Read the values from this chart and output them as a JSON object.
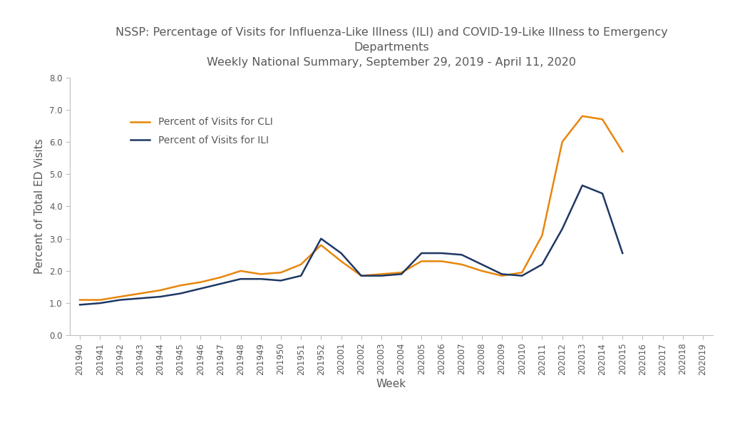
{
  "title_line1": "NSSP: Percentage of Visits for Influenza-Like Illness (ILI) and COVID-19-Like Illness to Emergency",
  "title_line2": "Departments",
  "title_line3": "Weekly National Summary, September 29, 2019 - April 11, 2020",
  "xlabel": "Week",
  "ylabel": "Percent of Total ED Visits",
  "ylim": [
    0.0,
    8.0
  ],
  "yticks": [
    0.0,
    1.0,
    2.0,
    3.0,
    4.0,
    5.0,
    6.0,
    7.0,
    8.0
  ],
  "weeks": [
    "201940",
    "201941",
    "201942",
    "201943",
    "201944",
    "201945",
    "201946",
    "201947",
    "201948",
    "201949",
    "201950",
    "201951",
    "201952",
    "202001",
    "202002",
    "202003",
    "202004",
    "202005",
    "202006",
    "202007",
    "202008",
    "202009",
    "202010",
    "202011",
    "202012",
    "202013",
    "202014",
    "202015",
    "202016",
    "202017",
    "202018",
    "202019"
  ],
  "cli_values": [
    1.1,
    1.1,
    1.2,
    1.3,
    1.4,
    1.55,
    1.65,
    1.8,
    2.0,
    1.9,
    1.95,
    2.2,
    2.8,
    2.3,
    1.85,
    1.9,
    1.95,
    2.3,
    2.3,
    2.2,
    2.0,
    1.85,
    1.95,
    3.1,
    6.0,
    6.8,
    6.7,
    5.7,
    null,
    null,
    null,
    null
  ],
  "ili_values": [
    0.95,
    1.0,
    1.1,
    1.15,
    1.2,
    1.3,
    1.45,
    1.6,
    1.75,
    1.75,
    1.7,
    1.85,
    3.0,
    2.55,
    1.85,
    1.85,
    1.9,
    2.55,
    2.55,
    2.5,
    2.2,
    1.9,
    1.85,
    2.2,
    3.3,
    4.65,
    4.4,
    2.55,
    null,
    null,
    null,
    null
  ],
  "cli_color": "#E8860C",
  "ili_color": "#1F3864",
  "cli_label": "Percent of Visits for CLI",
  "ili_label": "Percent of Visits for ILI",
  "line_width": 1.8,
  "title_fontsize": 11.5,
  "title_color": "#595959",
  "axis_label_fontsize": 11,
  "axis_label_color": "#595959",
  "tick_fontsize": 8.5,
  "tick_color": "#595959",
  "legend_fontsize": 10,
  "background_color": "#ffffff",
  "spine_color": "#c0c0c0"
}
